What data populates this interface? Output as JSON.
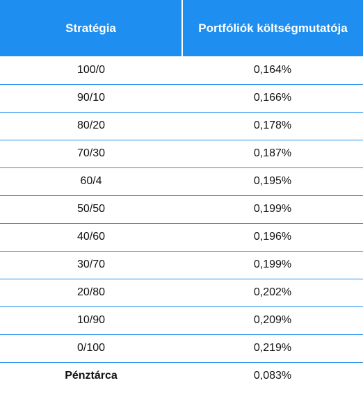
{
  "table": {
    "headers": [
      "Stratégia",
      "Portfóliók költségmutatója"
    ],
    "rows": [
      {
        "strategy": "100/0",
        "cost": "0,164%"
      },
      {
        "strategy": "90/10",
        "cost": "0,166%"
      },
      {
        "strategy": "80/20",
        "cost": "0,178%"
      },
      {
        "strategy": "70/30",
        "cost": "0,187%"
      },
      {
        "strategy": "60/4",
        "cost": "0,195%"
      },
      {
        "strategy": "50/50",
        "cost": "0,199%"
      },
      {
        "strategy": "40/60",
        "cost": "0,196%"
      },
      {
        "strategy": "30/70",
        "cost": "0,199%"
      },
      {
        "strategy": "20/80",
        "cost": "0,202%"
      },
      {
        "strategy": "10/90",
        "cost": "0,209%"
      },
      {
        "strategy": "0/100",
        "cost": "0,219%"
      },
      {
        "strategy": "Pénztárca",
        "cost": "0,083%"
      }
    ]
  },
  "colors": {
    "header_bg": "#1e8ff0",
    "row_divider": "#1e8ff0"
  }
}
